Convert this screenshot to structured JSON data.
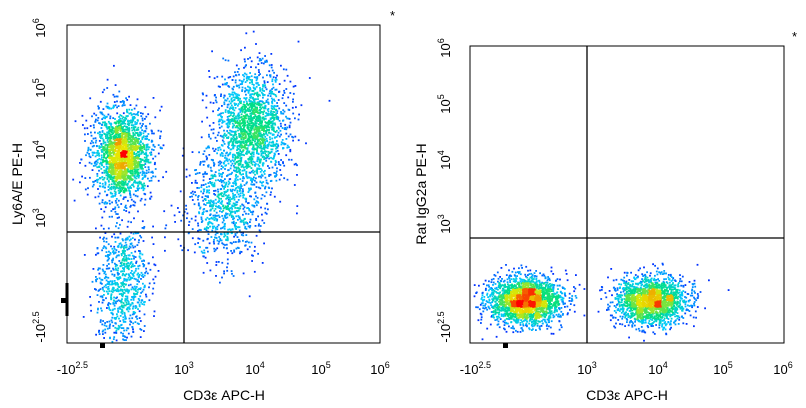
{
  "chart_data": [
    {
      "type": "scatter",
      "subtype": "flow-cytometry-density-dot-plot",
      "title": "",
      "xlabel": "CD3ε APC-H",
      "ylabel": "Ly6A/E PE-H",
      "corner_mark": "*",
      "x_scale": "biexponential",
      "y_scale": "biexponential",
      "xlim": [
        -316,
        1000000
      ],
      "ylim": [
        -316,
        1000000
      ],
      "x_ticks": [
        {
          "base": "-10",
          "exp": "2.5"
        },
        {
          "base": "10",
          "exp": "3"
        },
        {
          "base": "10",
          "exp": "4"
        },
        {
          "base": "10",
          "exp": "5"
        },
        {
          "base": "10",
          "exp": "6"
        }
      ],
      "y_ticks": [
        {
          "base": "-10",
          "exp": "2.5"
        },
        {
          "base": "10",
          "exp": "3"
        },
        {
          "base": "10",
          "exp": "4"
        },
        {
          "base": "10",
          "exp": "5"
        },
        {
          "base": "10",
          "exp": "6"
        }
      ],
      "quadrant_gate": {
        "x": 1000,
        "y": 600
      },
      "populations": [
        {
          "center": [
            100,
            9000
          ],
          "count": 2000
        },
        {
          "center": [
            100,
            150
          ],
          "count": 800
        },
        {
          "center": [
            9000,
            25000
          ],
          "count": 1700
        },
        {
          "center": [
            4000,
            1800
          ],
          "count": 800
        }
      ],
      "color_scale": [
        "#0000ff",
        "#00c8ff",
        "#00e080",
        "#e8e800",
        "#ff0000"
      ]
    },
    {
      "type": "scatter",
      "subtype": "flow-cytometry-density-dot-plot",
      "title": "",
      "xlabel": "CD3ε APC-H",
      "ylabel": "Rat IgG2a PE-H",
      "corner_mark": "*",
      "x_scale": "biexponential",
      "y_scale": "biexponential",
      "xlim": [
        -316,
        1000000
      ],
      "ylim": [
        -316,
        1000000
      ],
      "x_ticks": [
        {
          "base": "-10",
          "exp": "2.5"
        },
        {
          "base": "10",
          "exp": "3"
        },
        {
          "base": "10",
          "exp": "4"
        },
        {
          "base": "10",
          "exp": "5"
        },
        {
          "base": "10",
          "exp": "6"
        }
      ],
      "y_ticks": [
        {
          "base": "-10",
          "exp": "2.5"
        },
        {
          "base": "10",
          "exp": "3"
        },
        {
          "base": "10",
          "exp": "4"
        },
        {
          "base": "10",
          "exp": "5"
        },
        {
          "base": "10",
          "exp": "6"
        }
      ],
      "quadrant_gate": {
        "x": 1000,
        "y": 600
      },
      "populations": [
        {
          "center": [
            100,
            0
          ],
          "count": 2200
        },
        {
          "center": [
            8000,
            0
          ],
          "count": 1800
        }
      ],
      "color_scale": [
        "#0000ff",
        "#00c8ff",
        "#00e080",
        "#e8e800",
        "#ff0000"
      ]
    }
  ]
}
